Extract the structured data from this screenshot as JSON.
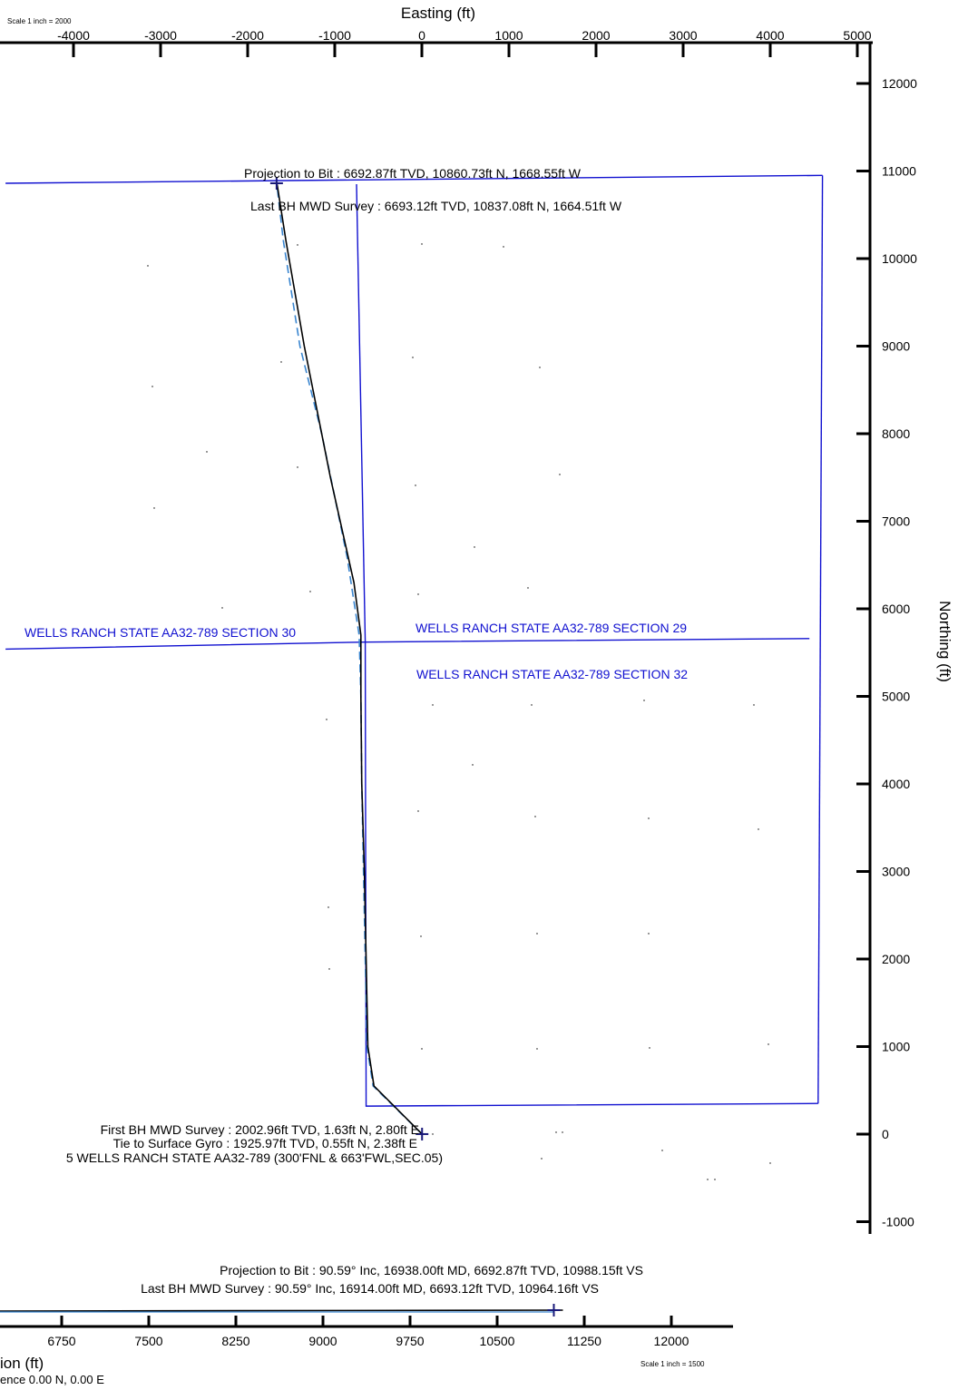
{
  "plan_view": {
    "scale_label": "Scale 1 inch = 2000",
    "easting_axis": {
      "title": "Easting (ft)",
      "ticks": [
        -4000,
        -3000,
        -2000,
        -1000,
        0,
        1000,
        2000,
        3000,
        4000,
        5000
      ]
    },
    "northing_axis": {
      "title": "Northing (ft)",
      "ticks": [
        12000,
        11000,
        10000,
        9000,
        8000,
        7000,
        6000,
        5000,
        4000,
        3000,
        2000,
        1000,
        0,
        -1000
      ]
    },
    "section_labels": {
      "section_30": "WELLS RANCH STATE AA32-789 SECTION 30",
      "section_29": "WELLS RANCH STATE AA32-789 SECTION 29",
      "section_32": "WELLS RANCH STATE AA32-789 SECTION 32"
    },
    "annotations": {
      "projection_to_bit": "Projection to Bit  : 6692.87ft TVD, 10860.73ft N, 1668.55ft W",
      "last_bh_mwd_survey": "Last BH MWD Survey  : 6693.12ft TVD, 10837.08ft N, 1664.51ft W",
      "first_bh_mwd_survey": "First BH MWD Survey : 2002.96ft TVD, 1.63ft N, 2.80ft E",
      "tie_to_surface_gyro": "Tie to Surface Gyro : 1925.97ft TVD, 0.55ft N, 2.38ft E",
      "well_location": "5 WELLS RANCH STATE AA32-789 (300'FNL & 663'FWL,SEC.05)"
    },
    "wellpath": {
      "actual": [
        [
          2.4,
          0.5
        ],
        [
          -550,
          550
        ],
        [
          -620,
          1000
        ],
        [
          -640,
          2000
        ],
        [
          -660,
          3000
        ],
        [
          -690,
          4000
        ],
        [
          -700,
          5000
        ],
        [
          -700,
          5700
        ],
        [
          -780,
          6300
        ],
        [
          -1050,
          7500
        ],
        [
          -1350,
          9000
        ],
        [
          -1560,
          10200
        ],
        [
          -1660,
          10837
        ],
        [
          -1668,
          10860
        ]
      ],
      "plan": [
        [
          2.4,
          0.5
        ],
        [
          -560,
          550
        ],
        [
          -630,
          1000
        ],
        [
          -650,
          2000
        ],
        [
          -670,
          3000
        ],
        [
          -690,
          4000
        ],
        [
          -700,
          5000
        ],
        [
          -720,
          5700
        ],
        [
          -860,
          6600
        ],
        [
          -1150,
          8000
        ],
        [
          -1400,
          9000
        ],
        [
          -1590,
          10200
        ],
        [
          -1664,
          10837
        ]
      ]
    },
    "section_lines": [
      [
        [
          -4780,
          10860
        ],
        [
          4600,
          10950
        ]
      ],
      [
        [
          -4780,
          5540
        ],
        [
          -650,
          5620
        ],
        [
          4450,
          5660
        ]
      ],
      [
        [
          -750,
          10850
        ],
        [
          -650,
          5620
        ]
      ],
      [
        [
          -650,
          5620
        ],
        [
          -640,
          320
        ],
        [
          4550,
          350
        ]
      ],
      [
        [
          4600,
          10950
        ],
        [
          4550,
          350
        ]
      ]
    ],
    "colors": {
      "section": "#1010d0",
      "wellpath": "#000000",
      "plan": "#3a86d0"
    }
  },
  "vertical_section": {
    "scale_label": "Scale 1 inch = 1500",
    "axis_title": "ion (ft)",
    "reference_label": "ence 0.00 N, 0.00 E",
    "ticks": [
      6750,
      7500,
      8250,
      9000,
      9750,
      10500,
      11250,
      12000
    ],
    "annotations": {
      "projection_to_bit": "Projection to Bit  : 90.59° Inc, 16938.00ft MD, 6692.87ft TVD, 10988.15ft VS",
      "last_bh_mwd_survey": "Last BH MWD Survey  : 90.59° Inc, 16914.00ft MD, 6693.12ft TVD, 10964.16ft VS"
    },
    "bit_vs": 10988.15
  }
}
